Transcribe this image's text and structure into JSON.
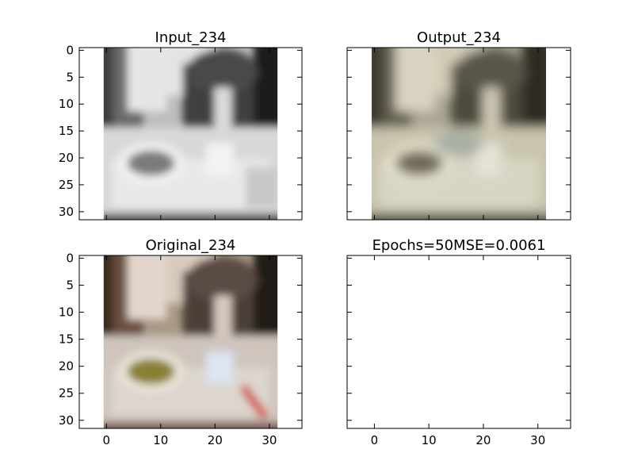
{
  "chart_data": [
    {
      "type": "image",
      "title": "Input_234",
      "content": "grayscale",
      "xlim": [
        -5,
        36
      ],
      "ylim": [
        31.5,
        -0.5
      ],
      "image_extent": [
        -0.5,
        31.5
      ],
      "xticks": [
        0,
        10,
        20,
        30
      ],
      "yticks": [
        0,
        5,
        10,
        15,
        20,
        25,
        30
      ],
      "show_x_tick_labels": false,
      "show_y_tick_labels": true
    },
    {
      "type": "image",
      "title": "Output_234",
      "content": "reconstruction",
      "xlim": [
        -5,
        36
      ],
      "ylim": [
        31.5,
        -0.5
      ],
      "image_extent": [
        -0.5,
        31.5
      ],
      "xticks": [
        0,
        10,
        20,
        30
      ],
      "yticks": [
        0,
        5,
        10,
        15,
        20,
        25,
        30
      ],
      "show_x_tick_labels": false,
      "show_y_tick_labels": false
    },
    {
      "type": "image",
      "title": "Original_234",
      "content": "color",
      "xlim": [
        -5,
        36
      ],
      "ylim": [
        31.5,
        -0.5
      ],
      "image_extent": [
        -0.5,
        31.5
      ],
      "xticks": [
        0,
        10,
        20,
        30
      ],
      "yticks": [
        0,
        5,
        10,
        15,
        20,
        25,
        30
      ],
      "show_x_tick_labels": true,
      "show_y_tick_labels": true
    },
    {
      "type": "empty",
      "title": "Epochs=50MSE=0.0061",
      "xlim": [
        -5,
        36
      ],
      "ylim": [
        31.5,
        -0.5
      ],
      "xticks": [
        0,
        10,
        20,
        30
      ],
      "yticks": [
        0,
        5,
        10,
        15,
        20,
        25,
        30
      ],
      "show_x_tick_labels": true,
      "show_y_tick_labels": false
    }
  ],
  "colors": {
    "background": "#ffffff",
    "axes": "#000000"
  }
}
